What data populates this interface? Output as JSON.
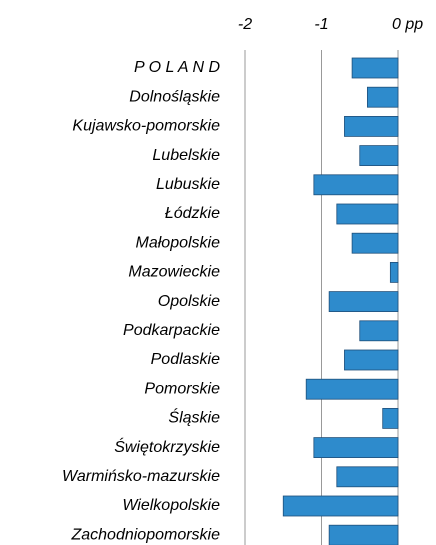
{
  "chart_data": {
    "type": "bar",
    "orientation": "horizontal",
    "categories": [
      "P O L A N D",
      "Dolnośląskie",
      "Kujawsko-pomorskie",
      "Lubelskie",
      "Lubuskie",
      "Łódzkie",
      "Małopolskie",
      "Mazowieckie",
      "Opolskie",
      "Podkarpackie",
      "Podlaskie",
      "Pomorskie",
      "Śląskie",
      "Świętokrzyskie",
      "Warmińsko-mazurskie",
      "Wielkopolskie",
      "Zachodniopomorskie"
    ],
    "values": [
      -0.6,
      -0.4,
      -0.7,
      -0.5,
      -1.1,
      -0.8,
      -0.6,
      -0.1,
      -0.9,
      -0.5,
      -0.7,
      -1.2,
      -0.2,
      -1.1,
      -0.8,
      -1.5,
      -0.9
    ],
    "color": "#2e8bcc",
    "xlim": [
      -2,
      0
    ],
    "xticks": [
      -2,
      -1,
      {
        "value": 0,
        "label": "0 pp"
      }
    ],
    "grid": true
  }
}
